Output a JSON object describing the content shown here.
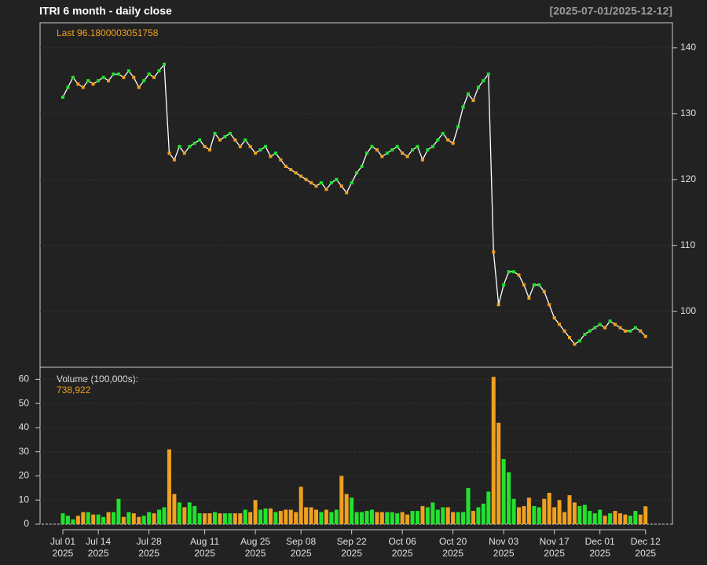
{
  "chart_data": [
    {
      "type": "line",
      "title": "ITRI  6 month - daily close",
      "subtitle": "[2025-07-01/2025-12-12]",
      "annotation": "Last 96.1800003051758",
      "up_color": "#22e22e",
      "down_color": "#f0a020",
      "line_color": "#ffffff",
      "values": [
        132.5,
        134,
        135.5,
        134.5,
        134,
        135,
        134.5,
        135,
        135.5,
        135,
        136,
        136,
        135.5,
        136.5,
        135.5,
        134,
        135,
        136,
        135.5,
        136.5,
        137.5,
        124,
        123,
        125,
        124,
        125,
        125.5,
        126,
        125,
        124.5,
        127,
        126,
        126.5,
        127,
        126,
        125,
        126,
        125,
        124,
        124.5,
        125,
        123.5,
        124,
        123,
        122,
        121.5,
        121,
        120.5,
        120,
        119.5,
        119,
        119.5,
        118.5,
        119.5,
        120,
        119,
        118,
        119.5,
        121,
        122,
        124,
        125,
        124.5,
        123.5,
        124,
        124.5,
        125,
        124,
        123.5,
        124.5,
        125,
        123,
        124.5,
        125,
        126,
        127,
        126,
        125.5,
        128,
        131,
        133,
        132,
        134,
        135,
        136,
        109,
        101,
        104,
        106,
        106,
        105.5,
        104,
        102,
        104,
        104,
        103,
        101,
        99,
        98,
        97,
        96,
        95,
        95.5,
        96.5,
        97,
        97.5,
        98,
        97.5,
        98.5,
        98,
        97.5,
        97,
        97,
        97.5,
        97,
        96.18
      ],
      "ylim": [
        91.5,
        143.8
      ],
      "yticks": [
        100,
        110,
        120,
        130,
        140
      ],
      "grid": true
    },
    {
      "type": "bar",
      "annotation": "Volume (100,000s):",
      "value_label": "738,922",
      "values": [
        4.5,
        3.5,
        2,
        3.5,
        5,
        5,
        4,
        4,
        3,
        5,
        5,
        10.5,
        3,
        5,
        4.5,
        3,
        3.5,
        5,
        4.5,
        6,
        7,
        31,
        12.5,
        9,
        7,
        9,
        7.5,
        4.5,
        4.5,
        4.5,
        5,
        4.5,
        4.5,
        4.5,
        4.5,
        4.5,
        6,
        5,
        10,
        6,
        6.5,
        6.5,
        5,
        5.5,
        6,
        6,
        5,
        15.5,
        7,
        7,
        6,
        5,
        6,
        5,
        6,
        20,
        12.5,
        11,
        5,
        5,
        5.5,
        6,
        5,
        5,
        5,
        5,
        4.5,
        5,
        4,
        5.5,
        5.5,
        7.5,
        7,
        9,
        6,
        7,
        7,
        5,
        5,
        5,
        15,
        5.5,
        7,
        8.5,
        13.5,
        61,
        42,
        27,
        21.5,
        10.5,
        7,
        7.5,
        11,
        7.5,
        7,
        10.5,
        13,
        7,
        10,
        5,
        12,
        9,
        7.5,
        8,
        5.5,
        4.5,
        6,
        3.5,
        4.5,
        5.5,
        4.5,
        4,
        3.5,
        5.5,
        4,
        7.39
      ],
      "ylim": [
        0,
        65
      ],
      "yticks": [
        0,
        10,
        20,
        30,
        40,
        50,
        60
      ],
      "grid": true,
      "xticks": [
        {
          "value": 0,
          "label": "Jul 01",
          "year": "2025"
        },
        {
          "value": 7,
          "label": "Jul 14",
          "year": "2025"
        },
        {
          "value": 17,
          "label": "Jul 28",
          "year": "2025"
        },
        {
          "value": 28,
          "label": "Aug 11",
          "year": "2025"
        },
        {
          "value": 38,
          "label": "Aug 25",
          "year": "2025"
        },
        {
          "value": 47,
          "label": "Sep 08",
          "year": "2025"
        },
        {
          "value": 57,
          "label": "Sep 22",
          "year": "2025"
        },
        {
          "value": 67,
          "label": "Oct 06",
          "year": "2025"
        },
        {
          "value": 77,
          "label": "Oct 20",
          "year": "2025"
        },
        {
          "value": 87,
          "label": "Nov 03",
          "year": "2025"
        },
        {
          "value": 97,
          "label": "Nov 17",
          "year": "2025"
        },
        {
          "value": 106,
          "label": "Dec 01",
          "year": "2025"
        },
        {
          "value": 115,
          "label": "Dec 12",
          "year": "2025"
        }
      ]
    }
  ]
}
